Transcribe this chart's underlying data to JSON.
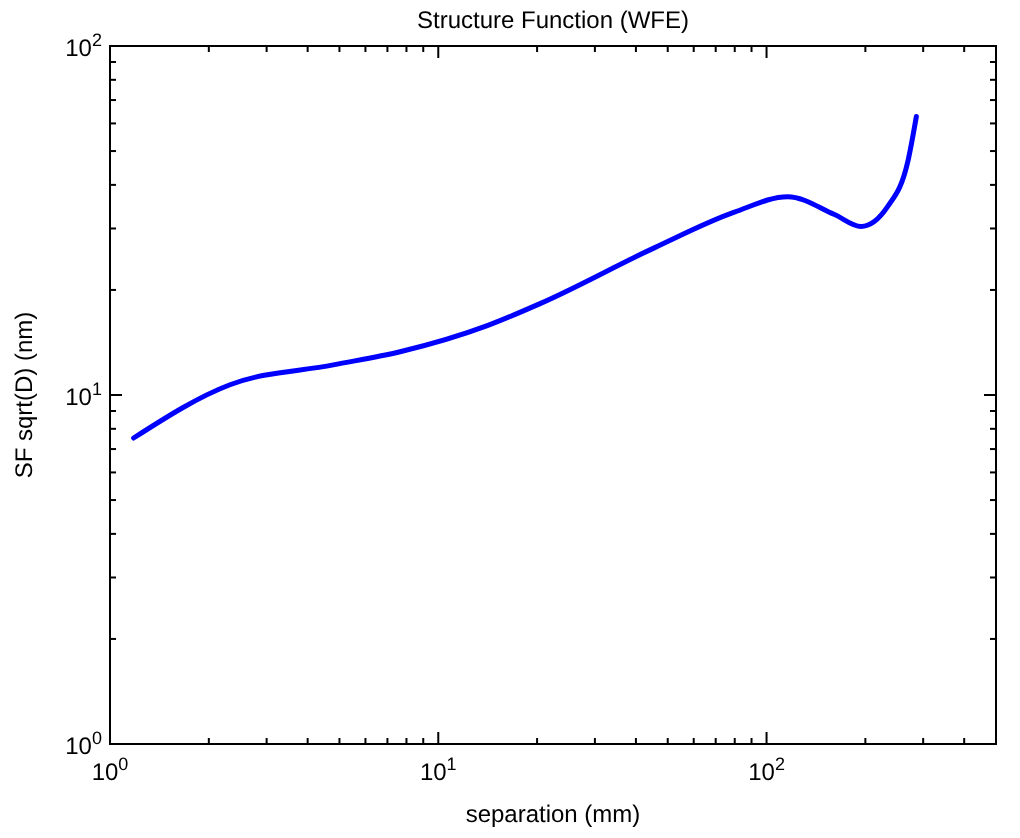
{
  "chart_data": {
    "type": "line",
    "title": "Structure Function (WFE)",
    "xlabel": "separation (mm)",
    "ylabel": "SF sqrt(D)  (nm)",
    "log": "xy",
    "xlim": [
      1,
      500
    ],
    "ylim": [
      1,
      100
    ],
    "xticks": [
      {
        "value": 1,
        "label": "10$^{0}$"
      },
      {
        "value": 10,
        "label": "10$^{1}$"
      },
      {
        "value": 100,
        "label": "10$^{2}$"
      }
    ],
    "yticks": [
      {
        "value": 1,
        "label": "10$^{0}$"
      },
      {
        "value": 10,
        "label": "10$^{1}$"
      },
      {
        "value": 100,
        "label": "10$^{2}$"
      }
    ],
    "series": [
      {
        "color": "#0000ff",
        "x": [
          1.18,
          2.32,
          4.79,
          7.65,
          14.1,
          20.5,
          45.5,
          79.8,
          116,
          161,
          194,
          234,
          270,
          286
        ],
        "values": [
          7.53,
          10.7,
          12.2,
          13.3,
          15.8,
          18.3,
          26.4,
          33.4,
          37.0,
          32.9,
          30.4,
          34.7,
          47.1,
          62.8
        ]
      }
    ]
  }
}
